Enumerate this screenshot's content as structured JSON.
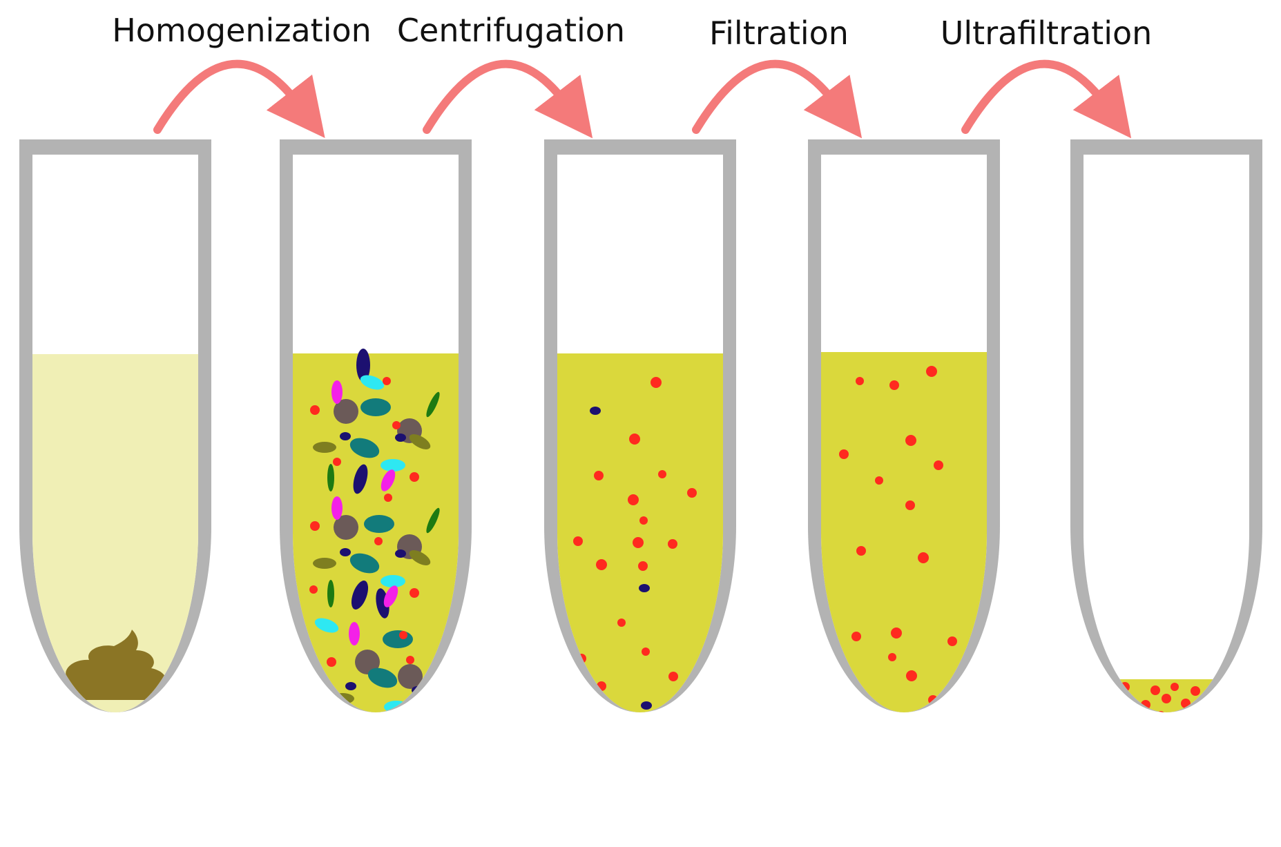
{
  "steps": [
    {
      "label": "Homogenization"
    },
    {
      "label": "Centrifugation"
    },
    {
      "label": "Filtration"
    },
    {
      "label": "Ultrafiltration"
    }
  ],
  "colors": {
    "tube_wall": "#b3b3b3",
    "tube_interior": "#ffffff",
    "liquid_homogenate": "#f0efb5",
    "liquid_processed": "#dad83c",
    "sample_solid": "#8b7525",
    "arrow": "#f47a7a",
    "particle_virus": "#ff2a1f",
    "particle_navy": "#1c1070",
    "particle_teal": "#127b7b",
    "particle_cyan": "#2ee8f2",
    "particle_magenta": "#f420e8",
    "particle_brown": "#6b5a58",
    "particle_olive": "#7e7e20",
    "particle_green": "#1d7a12"
  },
  "icons": {
    "tube_1": "tube-with-sample-icon",
    "tube_2": "tube-mixed-particles-icon",
    "tube_3": "tube-with-pellet-icon",
    "tube_4": "tube-filtered-icon",
    "tube_5": "tube-concentrated-icon"
  }
}
